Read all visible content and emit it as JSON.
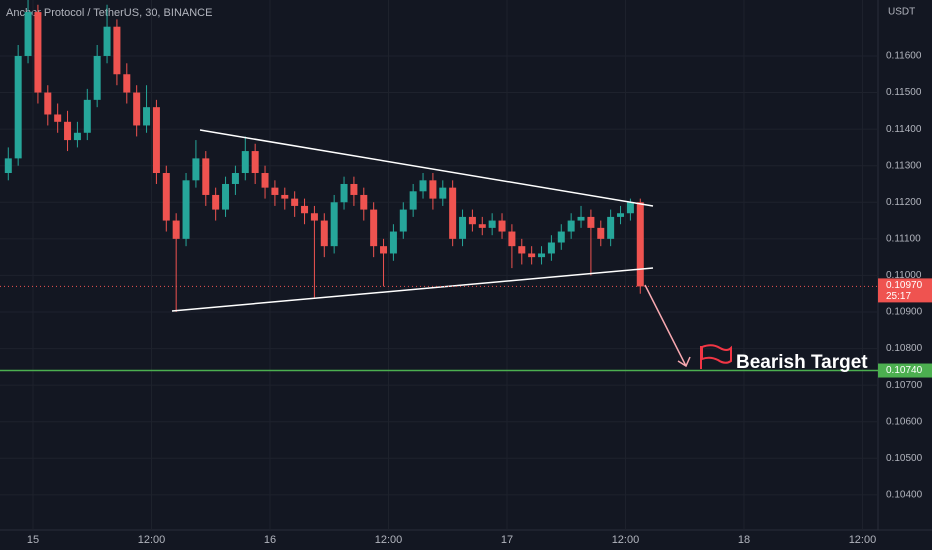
{
  "chart_data": {
    "type": "candlestick",
    "title": "Anchor Protocol / TetherUS, 30, BINANCE",
    "unit": "USDT",
    "annotation": "Bearish Target",
    "countdown": "25:17",
    "current_price": {
      "value": 0.1097,
      "label": "0.10970"
    },
    "target_price": {
      "value": 0.1074,
      "label": "0.10740"
    },
    "up_color": "#26a69a",
    "down_color": "#ef5350",
    "target_color": "#4caf50",
    "xlim": [
      -3.34,
      85.27
    ],
    "ylim": [
      0.10304,
      0.11753
    ],
    "xticks": [
      {
        "value": 0,
        "label": "15"
      },
      {
        "value": 12,
        "label": "12:00"
      },
      {
        "value": 24,
        "label": "16"
      },
      {
        "value": 36,
        "label": "12:00"
      },
      {
        "value": 48,
        "label": "17"
      },
      {
        "value": 60,
        "label": "12:00"
      },
      {
        "value": 72,
        "label": "18"
      },
      {
        "value": 84,
        "label": "12:00"
      }
    ],
    "yticks": [
      {
        "value": 0.116,
        "label": "0.11600"
      },
      {
        "value": 0.115,
        "label": "0.11500"
      },
      {
        "value": 0.114,
        "label": "0.11400"
      },
      {
        "value": 0.113,
        "label": "0.11300"
      },
      {
        "value": 0.112,
        "label": "0.11200"
      },
      {
        "value": 0.111,
        "label": "0.11100"
      },
      {
        "value": 0.11,
        "label": "0.11000"
      },
      {
        "value": 0.109,
        "label": "0.10900"
      },
      {
        "value": 0.108,
        "label": "0.10800"
      },
      {
        "value": 0.107,
        "label": "0.10700"
      },
      {
        "value": 0.106,
        "label": "0.10600"
      },
      {
        "value": 0.105,
        "label": "0.10500"
      },
      {
        "value": 0.104,
        "label": "0.10400"
      }
    ],
    "x": [
      -2.5,
      -1.5,
      -0.5,
      0.5,
      1.5,
      2.5,
      3.5,
      4.5,
      5.5,
      6.5,
      7.5,
      8.5,
      9.5,
      10.5,
      11.5,
      12.5,
      13.5,
      14.5,
      15.5,
      16.5,
      17.5,
      18.5,
      19.5,
      20.5,
      21.5,
      22.5,
      23.5,
      24.5,
      25.5,
      26.5,
      27.5,
      28.5,
      29.5,
      30.5,
      31.5,
      32.5,
      33.5,
      34.5,
      35.5,
      36.5,
      37.5,
      38.5,
      39.5,
      40.5,
      41.5,
      42.5,
      43.5,
      44.5,
      45.5,
      46.5,
      47.5,
      48.5,
      49.5,
      50.5,
      51.5,
      52.5,
      53.5,
      54.5,
      55.5,
      56.5,
      57.5,
      58.5,
      59.5,
      60.5,
      61.5
    ],
    "open": [
      0.1128,
      0.1132,
      0.116,
      0.1172,
      0.115,
      0.1144,
      0.1142,
      0.1137,
      0.1139,
      0.1148,
      0.116,
      0.1168,
      0.1155,
      0.115,
      0.1141,
      0.1146,
      0.1128,
      0.1115,
      0.111,
      0.1126,
      0.1132,
      0.1122,
      0.1118,
      0.1125,
      0.1128,
      0.1134,
      0.1128,
      0.1124,
      0.1122,
      0.1121,
      0.1119,
      0.1117,
      0.1115,
      0.1108,
      0.112,
      0.1125,
      0.1122,
      0.1118,
      0.1108,
      0.1106,
      0.1112,
      0.1118,
      0.1123,
      0.1126,
      0.1121,
      0.1124,
      0.111,
      0.1116,
      0.1114,
      0.1113,
      0.1115,
      0.1112,
      0.1108,
      0.1106,
      0.1105,
      0.1106,
      0.1109,
      0.1112,
      0.1115,
      0.1116,
      0.1113,
      0.111,
      0.1116,
      0.1117,
      0.112
    ],
    "high": [
      0.1135,
      0.1163,
      0.1176,
      0.1174,
      0.1152,
      0.1147,
      0.1145,
      0.1142,
      0.1151,
      0.1163,
      0.1174,
      0.117,
      0.1158,
      0.1152,
      0.1152,
      0.1148,
      0.113,
      0.1117,
      0.1128,
      0.1137,
      0.1134,
      0.1124,
      0.1127,
      0.113,
      0.1138,
      0.1136,
      0.113,
      0.1126,
      0.1124,
      0.1123,
      0.1121,
      0.1119,
      0.1117,
      0.1122,
      0.1127,
      0.1127,
      0.1124,
      0.112,
      0.111,
      0.1114,
      0.112,
      0.1125,
      0.1128,
      0.1128,
      0.1126,
      0.1126,
      0.1118,
      0.1118,
      0.1116,
      0.1117,
      0.1117,
      0.1114,
      0.111,
      0.1108,
      0.1108,
      0.1111,
      0.1114,
      0.1117,
      0.1119,
      0.1118,
      0.1115,
      0.1118,
      0.1119,
      0.1121,
      0.1121
    ],
    "low": [
      0.1126,
      0.113,
      0.1158,
      0.1147,
      0.1141,
      0.1139,
      0.1134,
      0.1135,
      0.1137,
      0.1146,
      0.1158,
      0.1152,
      0.1147,
      0.1138,
      0.1139,
      0.1125,
      0.1112,
      0.109,
      0.1108,
      0.1124,
      0.1119,
      0.1115,
      0.1116,
      0.1122,
      0.1126,
      0.1125,
      0.1121,
      0.1119,
      0.1118,
      0.1116,
      0.1114,
      0.1094,
      0.1105,
      0.1106,
      0.1118,
      0.1119,
      0.1115,
      0.1105,
      0.1097,
      0.1104,
      0.111,
      0.1116,
      0.1121,
      0.1118,
      0.1119,
      0.1108,
      0.1108,
      0.1112,
      0.1111,
      0.1111,
      0.111,
      0.1102,
      0.1103,
      0.1103,
      0.1103,
      0.1104,
      0.1107,
      0.111,
      0.1113,
      0.11,
      0.1108,
      0.1108,
      0.1114,
      0.1115,
      0.1095
    ],
    "close": [
      0.1132,
      0.116,
      0.1172,
      0.115,
      0.1144,
      0.1142,
      0.1137,
      0.1139,
      0.1148,
      0.116,
      0.1168,
      0.1155,
      0.115,
      0.1141,
      0.1146,
      0.1128,
      0.1115,
      0.111,
      0.1126,
      0.1132,
      0.1122,
      0.1118,
      0.1125,
      0.1128,
      0.1134,
      0.1128,
      0.1124,
      0.1122,
      0.1121,
      0.1119,
      0.1117,
      0.1115,
      0.1108,
      0.112,
      0.1125,
      0.1122,
      0.1118,
      0.1108,
      0.1106,
      0.1112,
      0.1118,
      0.1123,
      0.1126,
      0.1121,
      0.1124,
      0.111,
      0.1116,
      0.1114,
      0.1113,
      0.1115,
      0.1112,
      0.1108,
      0.1106,
      0.1105,
      0.1106,
      0.1109,
      0.1112,
      0.1115,
      0.1116,
      0.1113,
      0.111,
      0.1116,
      0.1117,
      0.112,
      0.1097
    ]
  }
}
